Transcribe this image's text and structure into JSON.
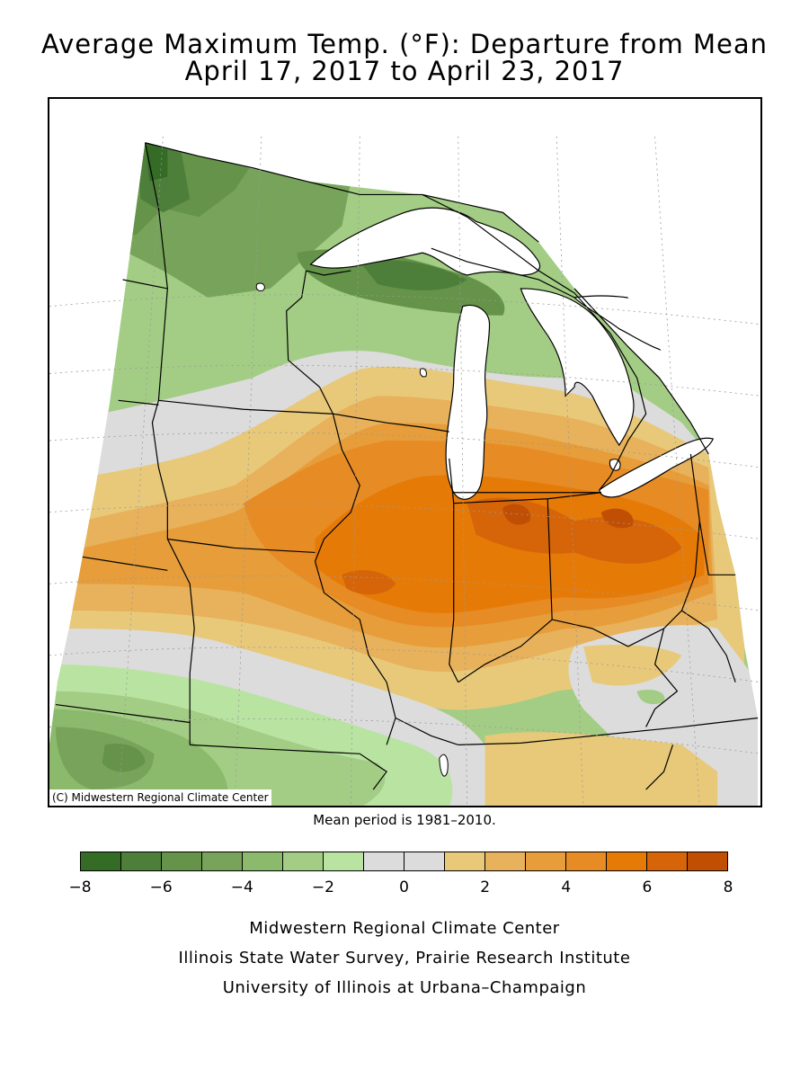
{
  "title_line1": "Average Maximum Temp. (°F): Departure from Mean",
  "title_line2": "April 17, 2017 to April 23, 2017",
  "copyright": "(C) Midwestern Regional Climate Center",
  "mean_period": "Mean period is 1981–2010.",
  "legend": {
    "labels": [
      "−8",
      "−6",
      "−4",
      "−2",
      "0",
      "2",
      "4",
      "6",
      "8"
    ],
    "colors": [
      "#346b25",
      "#4e7f3a",
      "#649349",
      "#77a45a",
      "#8cba6c",
      "#a3cd85",
      "#b8e3a1",
      "#dcdcdc",
      "#dcdcdc",
      "#e8c97a",
      "#e8b15b",
      "#e69d3a",
      "#e78b24",
      "#e67a07",
      "#d66408",
      "#c04f04"
    ]
  },
  "footer": {
    "line1": "Midwestern Regional Climate Center",
    "line2": "Illinois State Water Survey, Prairie Research Institute",
    "line3": "University of Illinois at Urbana–Champaign"
  },
  "map_colors": {
    "dark_green": "#4e7f3a",
    "mid_green": "#77a45a",
    "light_green": "#a3cd85",
    "pale_green": "#b8e3a1",
    "gray": "#dcdcdc",
    "tan": "#e8c97a",
    "light_orange": "#e69d3a",
    "orange": "#e67a07",
    "dark_orange": "#d66408",
    "water": "#ffffff"
  }
}
